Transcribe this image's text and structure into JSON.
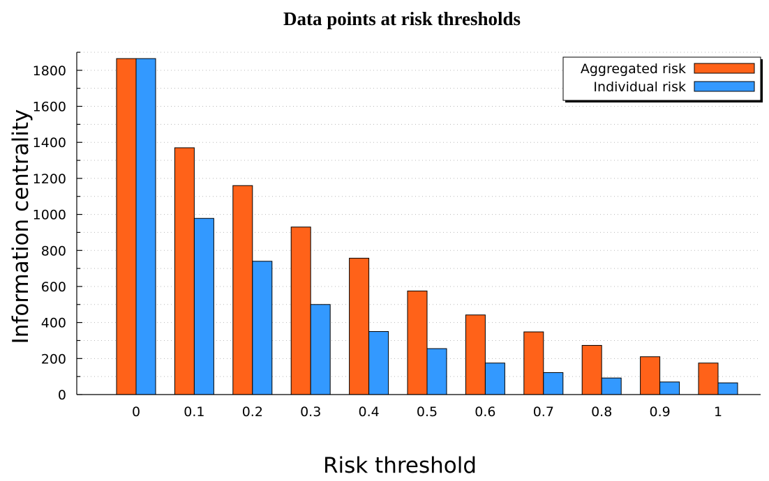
{
  "chart_data": {
    "type": "bar",
    "title": "Data points at risk thresholds",
    "xlabel": "Risk threshold",
    "ylabel": "Information centrality",
    "categories": [
      "0",
      "0.1",
      "0.2",
      "0.3",
      "0.4",
      "0.5",
      "0.6",
      "0.7",
      "0.8",
      "0.9",
      "1"
    ],
    "series": [
      {
        "name": "Aggregated risk",
        "color": "#ff6219",
        "values": [
          1865,
          1370,
          1160,
          930,
          757,
          575,
          442,
          348,
          273,
          210,
          175
        ]
      },
      {
        "name": "Individual risk",
        "color": "#3399ff",
        "values": [
          1865,
          978,
          740,
          500,
          350,
          255,
          175,
          122,
          92,
          70,
          65
        ]
      }
    ],
    "ylim": [
      0,
      1900
    ],
    "yticks": [
      0,
      200,
      400,
      600,
      800,
      1000,
      1200,
      1400,
      1600,
      1800
    ],
    "grid": true,
    "legend_position": "top-right"
  }
}
